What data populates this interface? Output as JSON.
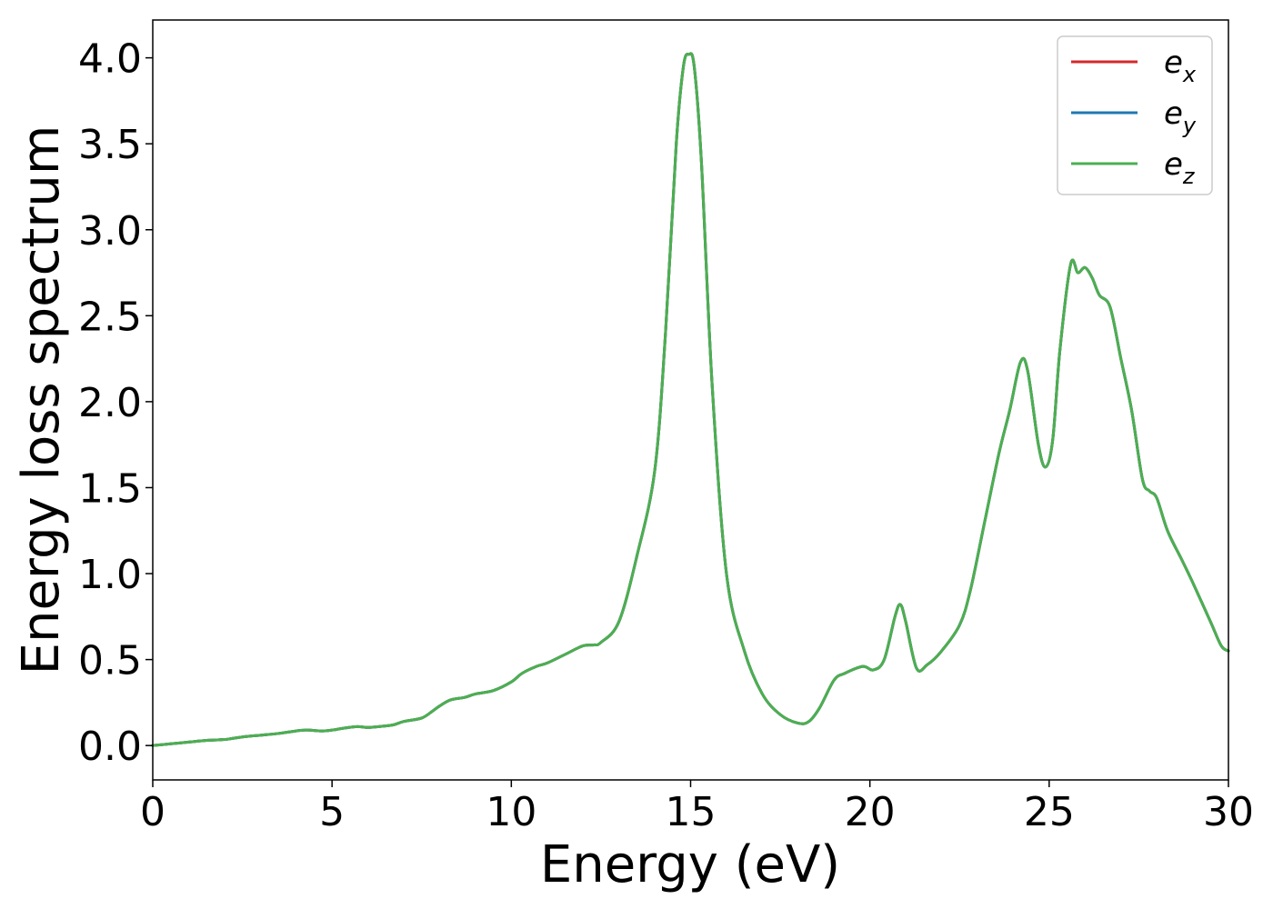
{
  "chart_data": {
    "type": "line",
    "title": "",
    "xlabel": "Energy (eV)",
    "ylabel": "Energy loss spectrum",
    "xlim": [
      0,
      30
    ],
    "ylim": [
      -0.2,
      4.22
    ],
    "xticks": [
      0,
      5,
      10,
      15,
      20,
      25,
      30
    ],
    "xtick_labels": [
      "0",
      "5",
      "10",
      "15",
      "20",
      "25",
      "30"
    ],
    "yticks": [
      0.0,
      0.5,
      1.0,
      1.5,
      2.0,
      2.5,
      3.0,
      3.5,
      4.0
    ],
    "ytick_labels": [
      "0.0",
      "0.5",
      "1.0",
      "1.5",
      "2.0",
      "2.5",
      "3.0",
      "3.5",
      "4.0"
    ],
    "grid": false,
    "legend_position": "top-right",
    "legend": [
      {
        "base": "e",
        "sub": "x",
        "color": "#d62728"
      },
      {
        "base": "e",
        "sub": "y",
        "color": "#1f77b4"
      },
      {
        "base": "e",
        "sub": "z",
        "color": "#4caf50"
      }
    ],
    "x": [
      0,
      0.5,
      1.0,
      1.5,
      2.0,
      2.5,
      3.0,
      3.5,
      4.0,
      4.3,
      4.7,
      5.0,
      5.3,
      5.7,
      6.0,
      6.3,
      6.7,
      7.0,
      7.5,
      7.8,
      8.0,
      8.3,
      8.7,
      9.0,
      9.5,
      10.0,
      10.3,
      10.7,
      11.0,
      11.5,
      12.0,
      12.3,
      12.5,
      13.0,
      13.5,
      14.0,
      14.3,
      14.6,
      14.8,
      14.95,
      15.1,
      15.3,
      15.6,
      16.0,
      16.5,
      17.0,
      17.5,
      18.0,
      18.3,
      18.6,
      19.0,
      19.3,
      19.8,
      20.1,
      20.4,
      20.7,
      20.85,
      21.0,
      21.3,
      21.6,
      22.0,
      22.5,
      22.8,
      23.2,
      23.6,
      23.9,
      24.2,
      24.4,
      24.7,
      24.9,
      25.1,
      25.3,
      25.6,
      25.8,
      26.0,
      26.2,
      26.4,
      26.7,
      27.0,
      27.3,
      27.6,
      27.8,
      28.0,
      28.3,
      28.7,
      29.0,
      29.5,
      29.8,
      30.0
    ],
    "series": [
      {
        "name": "e_x",
        "color": "#d62728",
        "values": [
          0.0,
          0.01,
          0.02,
          0.03,
          0.035,
          0.05,
          0.06,
          0.07,
          0.085,
          0.09,
          0.085,
          0.09,
          0.1,
          0.11,
          0.105,
          0.11,
          0.12,
          0.14,
          0.16,
          0.2,
          0.23,
          0.265,
          0.28,
          0.3,
          0.32,
          0.37,
          0.42,
          0.46,
          0.48,
          0.53,
          0.58,
          0.585,
          0.6,
          0.72,
          1.1,
          1.6,
          2.4,
          3.5,
          3.95,
          4.02,
          3.95,
          3.4,
          2.1,
          1.0,
          0.55,
          0.3,
          0.18,
          0.13,
          0.14,
          0.22,
          0.38,
          0.42,
          0.46,
          0.44,
          0.5,
          0.75,
          0.82,
          0.72,
          0.45,
          0.47,
          0.55,
          0.7,
          0.9,
          1.3,
          1.7,
          1.95,
          2.23,
          2.18,
          1.75,
          1.62,
          1.78,
          2.3,
          2.8,
          2.75,
          2.78,
          2.72,
          2.62,
          2.55,
          2.25,
          1.95,
          1.55,
          1.48,
          1.44,
          1.25,
          1.08,
          0.95,
          0.72,
          0.58,
          0.55
        ]
      },
      {
        "name": "e_y",
        "color": "#1f77b4",
        "values": [
          0.0,
          0.01,
          0.02,
          0.03,
          0.035,
          0.05,
          0.06,
          0.07,
          0.085,
          0.09,
          0.085,
          0.09,
          0.1,
          0.11,
          0.105,
          0.11,
          0.12,
          0.14,
          0.16,
          0.2,
          0.23,
          0.265,
          0.28,
          0.3,
          0.32,
          0.37,
          0.42,
          0.46,
          0.48,
          0.53,
          0.58,
          0.585,
          0.6,
          0.72,
          1.1,
          1.6,
          2.4,
          3.5,
          3.95,
          4.02,
          3.95,
          3.4,
          2.1,
          1.0,
          0.55,
          0.3,
          0.18,
          0.13,
          0.14,
          0.22,
          0.38,
          0.42,
          0.46,
          0.44,
          0.5,
          0.75,
          0.82,
          0.72,
          0.45,
          0.47,
          0.55,
          0.7,
          0.9,
          1.3,
          1.7,
          1.95,
          2.23,
          2.18,
          1.75,
          1.62,
          1.78,
          2.3,
          2.8,
          2.75,
          2.78,
          2.72,
          2.62,
          2.55,
          2.25,
          1.95,
          1.55,
          1.48,
          1.44,
          1.25,
          1.08,
          0.95,
          0.72,
          0.58,
          0.55
        ]
      },
      {
        "name": "e_z",
        "color": "#4caf50",
        "values": [
          0.0,
          0.01,
          0.02,
          0.03,
          0.035,
          0.05,
          0.06,
          0.07,
          0.085,
          0.09,
          0.085,
          0.09,
          0.1,
          0.11,
          0.105,
          0.11,
          0.12,
          0.14,
          0.16,
          0.2,
          0.23,
          0.265,
          0.28,
          0.3,
          0.32,
          0.37,
          0.42,
          0.46,
          0.48,
          0.53,
          0.58,
          0.585,
          0.6,
          0.72,
          1.1,
          1.6,
          2.4,
          3.5,
          3.95,
          4.02,
          3.95,
          3.4,
          2.1,
          1.0,
          0.55,
          0.3,
          0.18,
          0.13,
          0.14,
          0.22,
          0.38,
          0.42,
          0.46,
          0.44,
          0.5,
          0.75,
          0.82,
          0.72,
          0.45,
          0.47,
          0.55,
          0.7,
          0.9,
          1.3,
          1.7,
          1.95,
          2.23,
          2.18,
          1.75,
          1.62,
          1.78,
          2.3,
          2.8,
          2.75,
          2.78,
          2.72,
          2.62,
          2.55,
          2.25,
          1.95,
          1.55,
          1.48,
          1.44,
          1.25,
          1.08,
          0.95,
          0.72,
          0.58,
          0.55
        ]
      }
    ]
  }
}
